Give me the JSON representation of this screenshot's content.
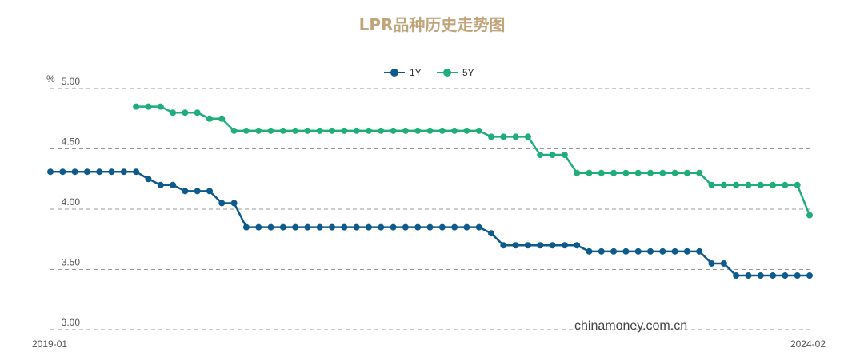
{
  "chart_data": {
    "type": "line",
    "title": "LPR品种历史走势图",
    "unit_label": "%",
    "ylim": [
      3.0,
      5.0
    ],
    "y_ticks": [
      "5.00",
      "4.50",
      "4.00",
      "3.50",
      "3.00"
    ],
    "x_start_label": "2019-01",
    "x_end_label": "2024-02",
    "legend_position": "top-center",
    "grid": true,
    "series": [
      {
        "name": "1Y",
        "color": "#0f5a8c",
        "values": [
          4.31,
          4.31,
          4.31,
          4.31,
          4.31,
          4.31,
          4.31,
          4.31,
          4.25,
          4.2,
          4.2,
          4.15,
          4.15,
          4.15,
          4.05,
          4.05,
          3.85,
          3.85,
          3.85,
          3.85,
          3.85,
          3.85,
          3.85,
          3.85,
          3.85,
          3.85,
          3.85,
          3.85,
          3.85,
          3.85,
          3.85,
          3.85,
          3.85,
          3.85,
          3.85,
          3.85,
          3.8,
          3.7,
          3.7,
          3.7,
          3.7,
          3.7,
          3.7,
          3.7,
          3.65,
          3.65,
          3.65,
          3.65,
          3.65,
          3.65,
          3.65,
          3.65,
          3.65,
          3.65,
          3.55,
          3.55,
          3.45,
          3.45,
          3.45,
          3.45,
          3.45,
          3.45,
          3.45
        ]
      },
      {
        "name": "5Y",
        "color": "#1fad7a",
        "values": [
          null,
          null,
          null,
          null,
          null,
          null,
          null,
          4.85,
          4.85,
          4.85,
          4.8,
          4.8,
          4.8,
          4.75,
          4.75,
          4.65,
          4.65,
          4.65,
          4.65,
          4.65,
          4.65,
          4.65,
          4.65,
          4.65,
          4.65,
          4.65,
          4.65,
          4.65,
          4.65,
          4.65,
          4.65,
          4.65,
          4.65,
          4.65,
          4.65,
          4.65,
          4.6,
          4.6,
          4.6,
          4.6,
          4.45,
          4.45,
          4.45,
          4.3,
          4.3,
          4.3,
          4.3,
          4.3,
          4.3,
          4.3,
          4.3,
          4.3,
          4.3,
          4.3,
          4.2,
          4.2,
          4.2,
          4.2,
          4.2,
          4.2,
          4.2,
          4.2,
          3.95
        ]
      }
    ]
  },
  "watermark": "chinamoney.com.cn"
}
